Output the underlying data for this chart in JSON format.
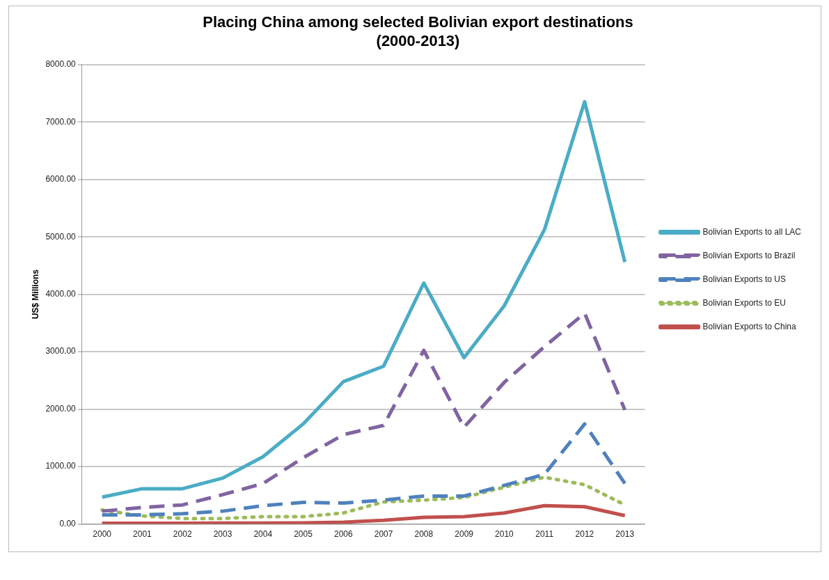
{
  "chart_data": {
    "type": "line",
    "title": "Placing China among selected Bolivian export destinations\n(2000-2013)",
    "ylabel": "US$ Millions",
    "categories": [
      "2000",
      "2001",
      "2002",
      "2003",
      "2004",
      "2005",
      "2006",
      "2007",
      "2008",
      "2009",
      "2010",
      "2011",
      "2012",
      "2013"
    ],
    "series": [
      {
        "name": "Bolivian Exports to all LAC",
        "color": "#4bacc6",
        "line_style": "solid",
        "values": [
          468,
          615,
          615,
          800,
          1172,
          1742,
          2479,
          2748,
          4196,
          2896,
          3799,
          5125,
          7354,
          4561
        ]
      },
      {
        "name": "Bolivian Exports to Brazil",
        "color": "#8064a2",
        "line_style": "dashed",
        "values": [
          224,
          288,
          333,
          512,
          705,
          1153,
          1557,
          1717,
          3024,
          1685,
          2466,
          3088,
          3671,
          1986
        ]
      },
      {
        "name": "Bolivian Exports to US",
        "color": "#4f81bd",
        "line_style": "dashed",
        "values": [
          160,
          160,
          180,
          224,
          320,
          378,
          365,
          416,
          487,
          487,
          673,
          865,
          1742,
          705
        ]
      },
      {
        "name": "Bolivian Exports to EU",
        "color": "#9bbb59",
        "line_style": "dotted",
        "values": [
          243,
          141,
          96,
          96,
          128,
          128,
          192,
          384,
          416,
          461,
          641,
          814,
          685,
          333
        ]
      },
      {
        "name": "Bolivian Exports to China",
        "color": "#c0504d",
        "line_style": "solid",
        "values": [
          13,
          13,
          13,
          15,
          15,
          20,
          32,
          64,
          115,
          128,
          192,
          320,
          301,
          147
        ]
      }
    ],
    "ylim": [
      0,
      8000
    ],
    "yticks": [
      {
        "value": 0,
        "label": "0.00"
      },
      {
        "value": 1000,
        "label": "1000.00"
      },
      {
        "value": 2000,
        "label": "2000.00"
      },
      {
        "value": 3000,
        "label": "3000.00"
      },
      {
        "value": 4000,
        "label": "4000.00"
      },
      {
        "value": 5000,
        "label": "5000.00"
      },
      {
        "value": 6000,
        "label": "6000.00"
      },
      {
        "value": 7000,
        "label": "7000.00"
      },
      {
        "value": 8000,
        "label": "8000.00"
      }
    ],
    "grid": "y",
    "legend": "right",
    "marker": "none"
  }
}
